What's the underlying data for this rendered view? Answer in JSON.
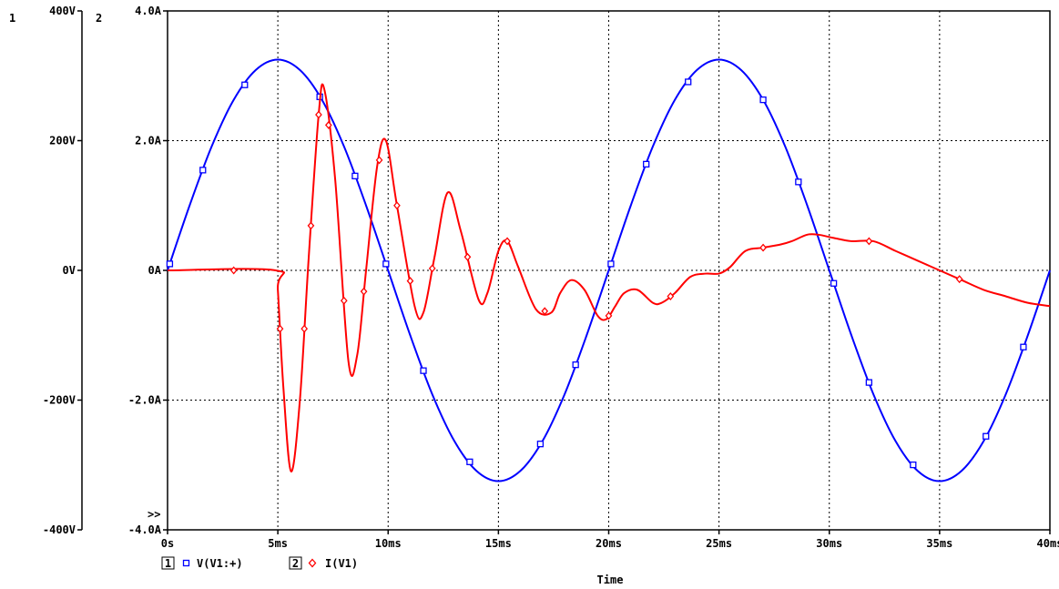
{
  "chart_data": {
    "type": "line",
    "xlabel": "Time",
    "xlim": [
      0,
      40
    ],
    "x_ticks": [
      "0s",
      "5ms",
      "10ms",
      "15ms",
      "20ms",
      "25ms",
      "30ms",
      "35ms",
      "40ms"
    ],
    "y_axes": [
      {
        "number": "1",
        "unit": "V",
        "ylim": [
          -400,
          400
        ],
        "ticks": [
          "400V",
          "200V",
          "0V",
          "-200V",
          "-400V"
        ]
      },
      {
        "number": "2",
        "unit": "A",
        "ylim": [
          -4,
          4
        ],
        "ticks": [
          "4.0A",
          "2.0A",
          "0A",
          "-2.0A",
          "-4.0A"
        ]
      }
    ],
    "grid": true,
    "axis_marker": ">>",
    "legend_placement": "bottom-left",
    "series": [
      {
        "name": "V(V1:+)",
        "axis_number": "1",
        "color": "#0000ff",
        "marker": "square",
        "x": [
          0,
          1,
          2,
          3,
          4,
          5,
          6,
          7,
          8,
          9,
          10,
          11,
          12,
          13,
          14,
          15,
          16,
          17,
          18,
          19,
          20,
          21,
          22,
          23,
          24,
          25,
          26,
          27,
          28,
          29,
          30,
          31,
          32,
          33,
          34,
          35,
          36,
          37,
          38,
          39,
          40
        ],
        "values": [
          0,
          100,
          191,
          263,
          309,
          325,
          309,
          263,
          191,
          100,
          0,
          -100,
          -191,
          -263,
          -309,
          -325,
          -309,
          -263,
          -191,
          -100,
          0,
          100,
          191,
          263,
          309,
          325,
          309,
          263,
          191,
          100,
          0,
          -100,
          -191,
          -263,
          -309,
          -325,
          -309,
          -263,
          -191,
          -100,
          0
        ],
        "marker_x": [
          0.1,
          1.6,
          3.5,
          6.9,
          8.5,
          9.9,
          11.6,
          13.7,
          16.9,
          18.5,
          20.1,
          21.7,
          23.6,
          27.0,
          28.6,
          30.2,
          31.8,
          33.8,
          37.1,
          38.8
        ]
      },
      {
        "name": "I(V1)",
        "axis_number": "2",
        "color": "#ff0000",
        "marker": "diamond",
        "x": [
          0,
          4.9,
          5.0,
          5.25,
          5.6,
          6.0,
          6.4,
          6.85,
          7.1,
          7.6,
          8.2,
          8.6,
          9.0,
          9.5,
          9.9,
          10.4,
          11.2,
          11.6,
          12.1,
          12.7,
          13.3,
          14.1,
          14.5,
          15.0,
          15.4,
          15.9,
          16.7,
          17.4,
          17.8,
          18.3,
          18.9,
          19.5,
          19.9,
          20.3,
          20.7,
          21.3,
          22.0,
          22.4,
          23.0,
          23.7,
          24.4,
          25.0,
          25.5,
          26.2,
          27.0,
          27.8,
          28.3,
          29.0,
          29.5,
          30.2,
          31.0,
          32.0,
          33.0,
          34.0,
          35.0,
          36.0,
          37.0,
          38.0,
          39.0,
          40.0
        ],
        "values": [
          0,
          0,
          -0.3,
          -1.8,
          -3.1,
          -2.0,
          0.2,
          2.4,
          2.8,
          1.4,
          -1.4,
          -1.3,
          0.0,
          1.6,
          2.0,
          1.0,
          -0.55,
          -0.65,
          0.2,
          1.2,
          0.6,
          -0.45,
          -0.35,
          0.3,
          0.45,
          0.05,
          -0.6,
          -0.65,
          -0.35,
          -0.15,
          -0.3,
          -0.7,
          -0.75,
          -0.55,
          -0.35,
          -0.3,
          -0.5,
          -0.5,
          -0.35,
          -0.1,
          -0.05,
          -0.05,
          0.05,
          0.3,
          0.35,
          0.4,
          0.45,
          0.55,
          0.55,
          0.5,
          0.45,
          0.45,
          0.3,
          0.15,
          0.0,
          -0.15,
          -0.3,
          -0.4,
          -0.5,
          -0.55
        ],
        "marker_x": [
          3.0,
          5.1,
          6.2,
          6.5,
          6.85,
          7.3,
          8.0,
          8.9,
          9.6,
          10.4,
          11.0,
          12.0,
          13.6,
          15.4,
          17.1,
          20.0,
          22.8,
          27.0,
          31.8,
          35.9
        ]
      }
    ]
  }
}
